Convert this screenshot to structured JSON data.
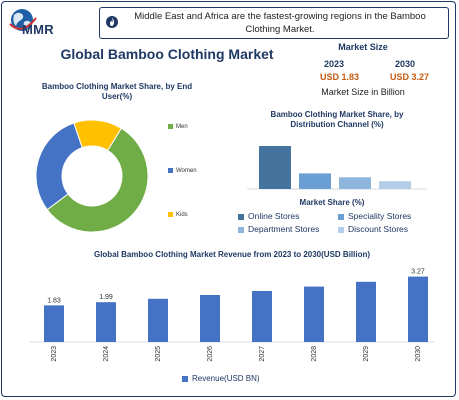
{
  "logo": {
    "text": "MMR",
    "icon": "globe-icon"
  },
  "header": {
    "text": "Middle East and Africa are the fastest-growing regions in the Bamboo Clothing Market.",
    "icon": "flame-icon"
  },
  "main_title": "Global Bamboo Clothing Market",
  "market_size": {
    "title": "Market Size",
    "year_start": "2023",
    "year_end": "2030",
    "value_start": "USD 1.83",
    "value_end": "USD 3.27",
    "unit": "Market Size in Billion"
  },
  "chart_data": [
    {
      "type": "pie",
      "title": "Bamboo Clothing Market Share, by End User(%)",
      "categories": [
        "Men",
        "Women",
        "Kids"
      ],
      "values": [
        56,
        30,
        14
      ],
      "colors": [
        "#70ad47",
        "#4472c4",
        "#ffc000"
      ],
      "legend_position": "right"
    },
    {
      "type": "bar",
      "title": "Bamboo Clothing Market Share, by Distribution Channel (%)",
      "legend_title": "Market Share (%)",
      "categories": [
        "Online Stores",
        "Speciality Stores",
        "Department Stores",
        "Discount Stores"
      ],
      "values": [
        44,
        16,
        12,
        8
      ],
      "colors": [
        "#44739e",
        "#6a9fd4",
        "#8eb5dc",
        "#b4cde8"
      ],
      "legend_position": "bottom"
    },
    {
      "type": "bar",
      "title": "Global Bamboo Clothing Market Revenue from 2023 to 2030(USD Billion)",
      "categories": [
        "2023",
        "2024",
        "2025",
        "2026",
        "2027",
        "2028",
        "2029",
        "2030"
      ],
      "series": [
        {
          "name": "Revenue(USD BN)",
          "values": [
            1.83,
            1.99,
            2.16,
            2.35,
            2.55,
            2.77,
            3.01,
            3.27
          ]
        }
      ],
      "data_labels": [
        "1.83",
        "1.99",
        "",
        "",
        "",
        "",
        "",
        "3.27"
      ],
      "color": "#4472c4",
      "ylim": [
        0,
        3.6
      ],
      "legend_position": "bottom"
    }
  ]
}
